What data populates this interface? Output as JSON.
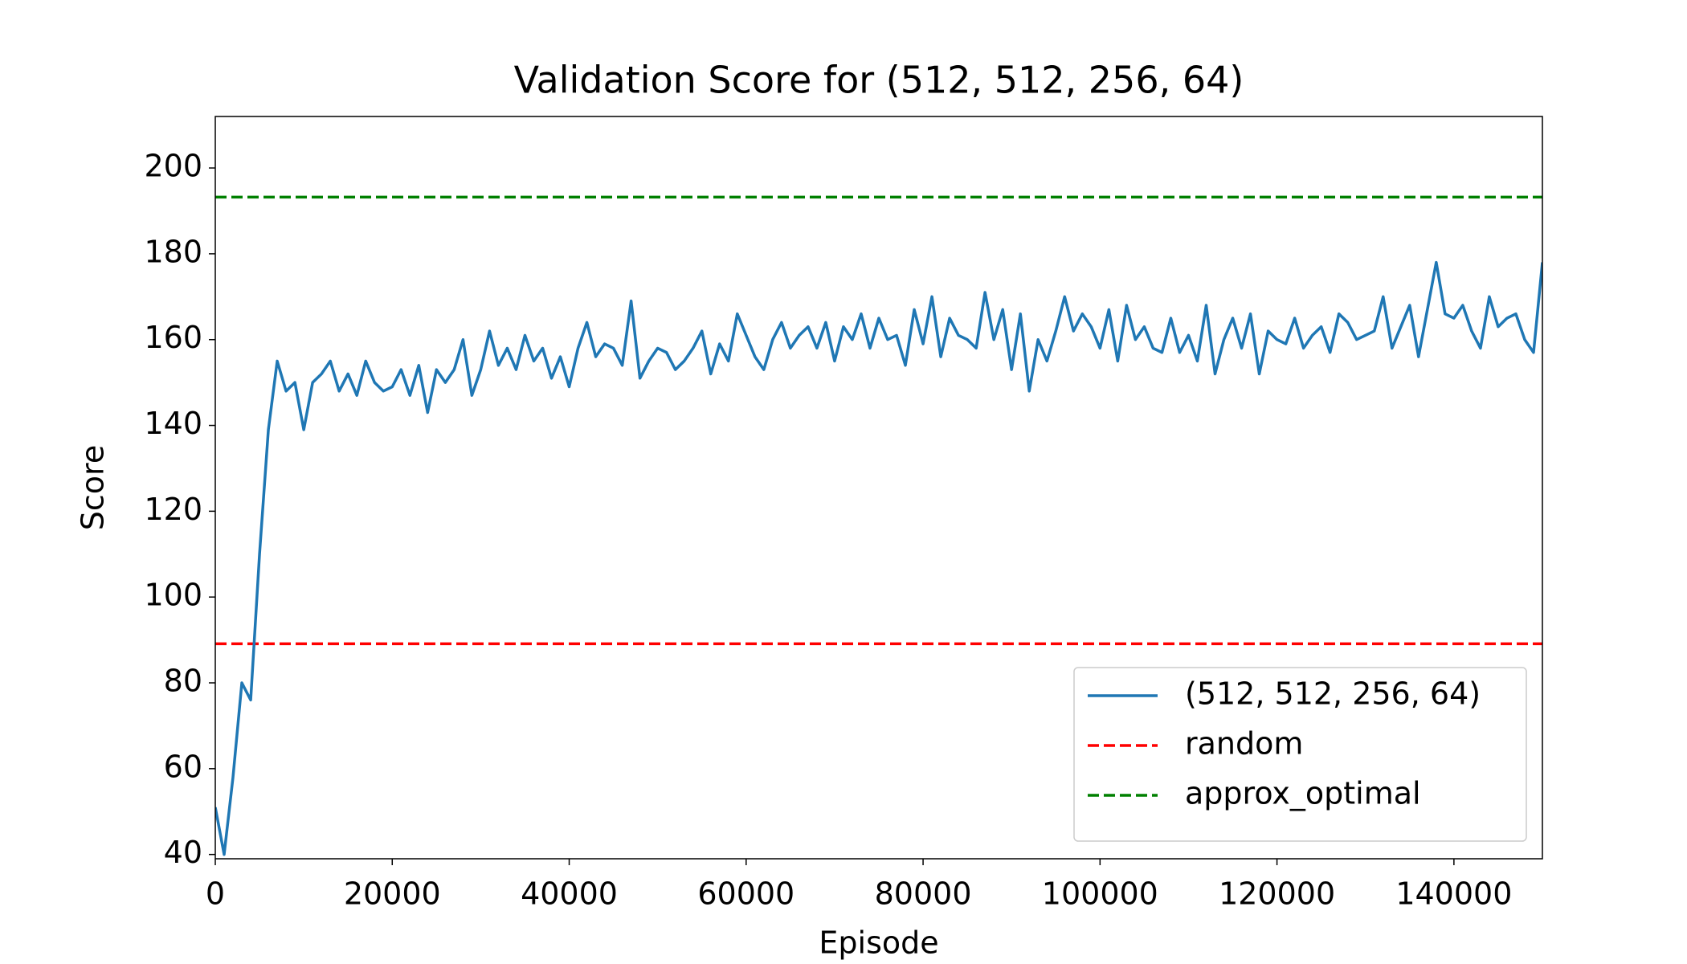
{
  "chart_data": {
    "type": "line",
    "title": "Validation Score for (512, 512, 256, 64)",
    "xlabel": "Episode",
    "ylabel": "Score",
    "xlim": [
      0,
      150000
    ],
    "ylim": [
      39,
      212
    ],
    "xticks": [
      0,
      20000,
      40000,
      60000,
      80000,
      100000,
      120000,
      140000
    ],
    "yticks": [
      40,
      60,
      80,
      100,
      120,
      140,
      160,
      180,
      200
    ],
    "legend": "lower right",
    "series": [
      {
        "name": "(512, 512, 256, 64)",
        "color": "#1f77b4",
        "x": [
          0,
          1000,
          2000,
          3000,
          4000,
          5000,
          6000,
          7000,
          8000,
          9000,
          10000,
          11000,
          12000,
          13000,
          14000,
          15000,
          16000,
          17000,
          18000,
          19000,
          20000,
          21000,
          22000,
          23000,
          24000,
          25000,
          26000,
          27000,
          28000,
          29000,
          30000,
          31000,
          32000,
          33000,
          34000,
          35000,
          36000,
          37000,
          38000,
          39000,
          40000,
          41000,
          42000,
          43000,
          44000,
          45000,
          46000,
          47000,
          48000,
          49000,
          50000,
          51000,
          52000,
          53000,
          54000,
          55000,
          56000,
          57000,
          58000,
          59000,
          60000,
          61000,
          62000,
          63000,
          64000,
          65000,
          66000,
          67000,
          68000,
          69000,
          70000,
          71000,
          72000,
          73000,
          74000,
          75000,
          76000,
          77000,
          78000,
          79000,
          80000,
          81000,
          82000,
          83000,
          84000,
          85000,
          86000,
          87000,
          88000,
          89000,
          90000,
          91000,
          92000,
          93000,
          94000,
          95000,
          96000,
          97000,
          98000,
          99000,
          100000,
          101000,
          102000,
          103000,
          104000,
          105000,
          106000,
          107000,
          108000,
          109000,
          110000,
          111000,
          112000,
          113000,
          114000,
          115000,
          116000,
          117000,
          118000,
          119000,
          120000,
          121000,
          122000,
          123000,
          124000,
          125000,
          126000,
          127000,
          128000,
          129000,
          130000,
          131000,
          132000,
          133000,
          134000,
          135000,
          136000,
          137000,
          138000,
          139000,
          140000,
          141000,
          142000,
          143000,
          144000,
          145000,
          146000,
          147000,
          148000,
          149000,
          150000
        ],
        "values": [
          51,
          40,
          58,
          80,
          76,
          110,
          139,
          155,
          148,
          150,
          139,
          150,
          152,
          155,
          148,
          152,
          147,
          155,
          150,
          148,
          149,
          153,
          147,
          154,
          143,
          153,
          150,
          153,
          160,
          147,
          153,
          162,
          154,
          158,
          153,
          161,
          155,
          158,
          151,
          156,
          149,
          158,
          164,
          156,
          159,
          158,
          154,
          169,
          151,
          155,
          158,
          157,
          153,
          155,
          158,
          162,
          152,
          159,
          155,
          166,
          161,
          156,
          153,
          160,
          164,
          158,
          161,
          163,
          158,
          164,
          155,
          163,
          160,
          166,
          158,
          165,
          160,
          161,
          154,
          167,
          159,
          170,
          156,
          165,
          161,
          160,
          158,
          171,
          160,
          167,
          153,
          166,
          148,
          160,
          155,
          162,
          170,
          162,
          166,
          163,
          158,
          167,
          155,
          168,
          160,
          163,
          158,
          157,
          165,
          157,
          161,
          155,
          168,
          152,
          160,
          165,
          158,
          166,
          152,
          162,
          160,
          159,
          165,
          158,
          161,
          163,
          157,
          166,
          164,
          160,
          161,
          162,
          170,
          158,
          163,
          168,
          156,
          167,
          178,
          166,
          165,
          168,
          162,
          158,
          170,
          163,
          165,
          166,
          160,
          157,
          178
        ]
      }
    ],
    "hlines": [
      {
        "name": "random",
        "color": "#ff0000",
        "value": 89.1,
        "style": "dashed"
      },
      {
        "name": "approx_optimal",
        "color": "#008000",
        "value": 193.2,
        "style": "dashed"
      }
    ]
  }
}
